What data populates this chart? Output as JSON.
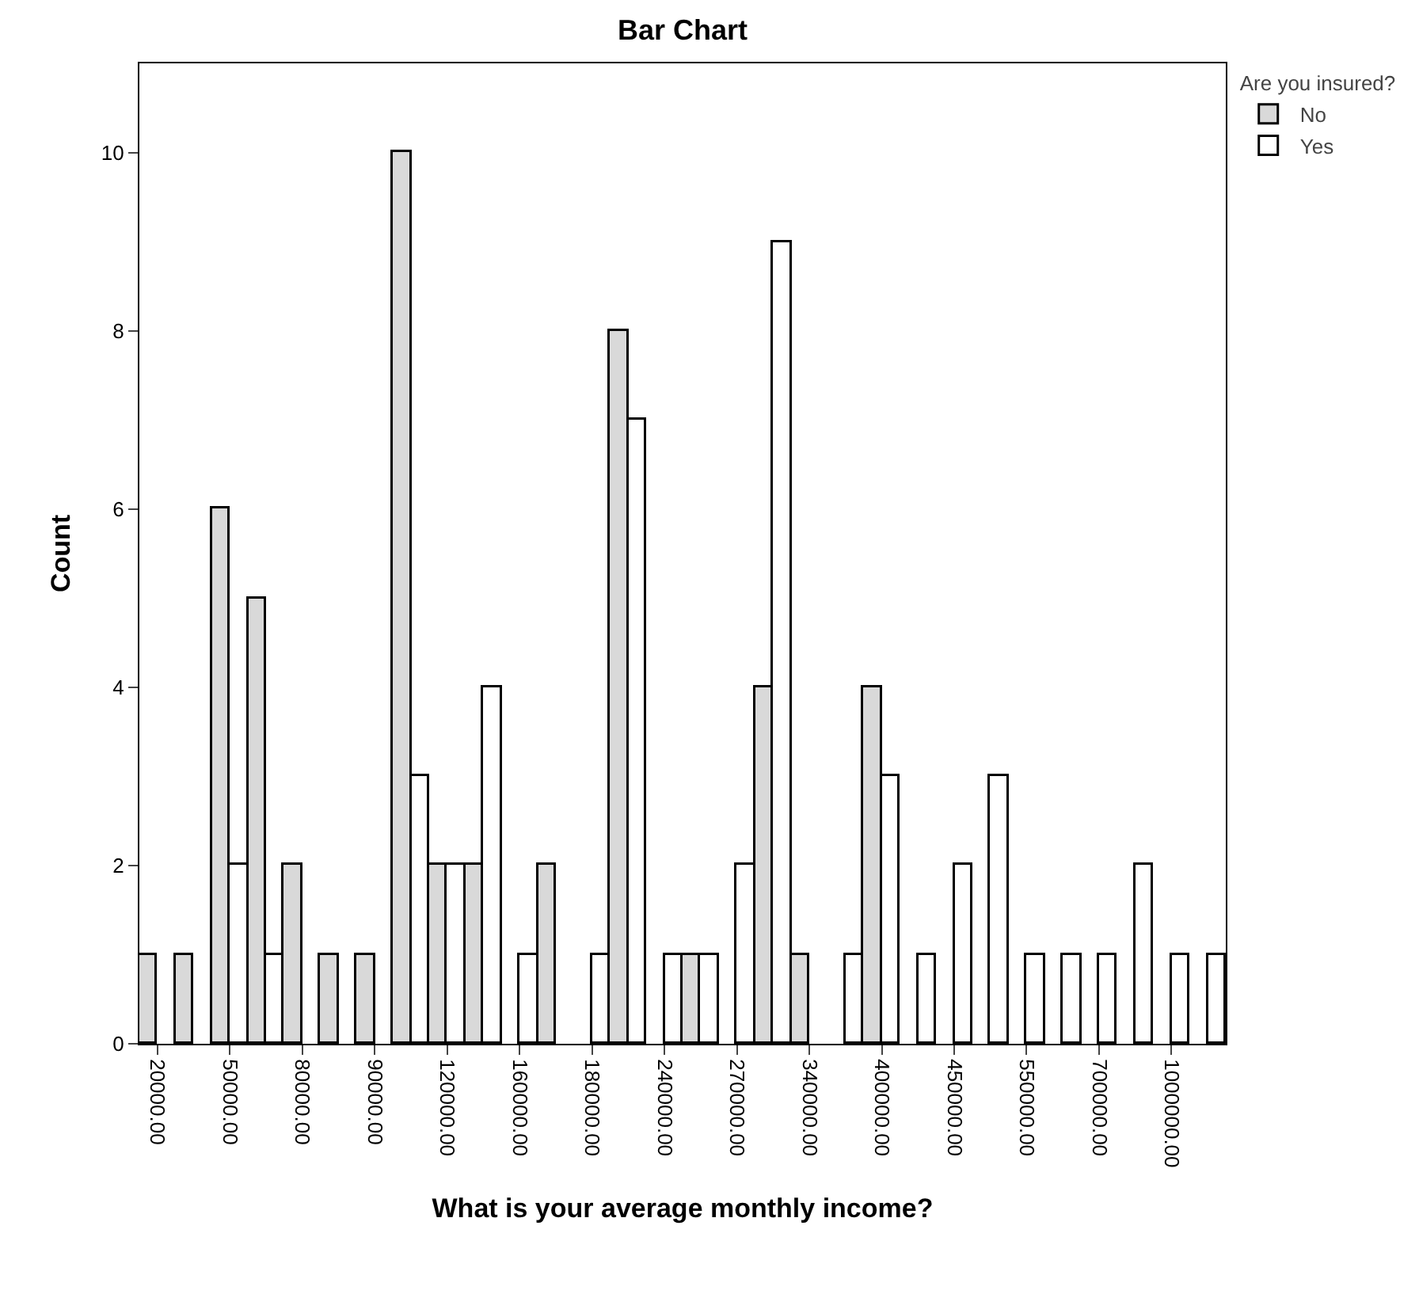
{
  "chart_data": {
    "type": "bar",
    "title": "Bar Chart",
    "xlabel": "What is your average monthly income?",
    "ylabel": "Count",
    "legend_title": "Are you insured?",
    "categories": [
      "20000.00",
      null,
      "50000.00",
      null,
      "80000.00",
      null,
      "90000.00",
      null,
      "120000.00",
      null,
      "160000.00",
      null,
      "180000.00",
      null,
      "240000.00",
      null,
      "270000.00",
      null,
      "340000.00",
      null,
      "400000.00",
      null,
      "450000.00",
      null,
      "550000.00",
      null,
      "700000.00",
      null,
      "1000000.00",
      null
    ],
    "series": [
      {
        "name": "No",
        "color": "#d9d9d9",
        "values": [
          1,
          1,
          6,
          5,
          2,
          1,
          1,
          10,
          2,
          2,
          0,
          2,
          0,
          8,
          0,
          1,
          0,
          4,
          1,
          0,
          4,
          0,
          0,
          0,
          0,
          0,
          0,
          0,
          0,
          0
        ]
      },
      {
        "name": "Yes",
        "color": "#ffffff",
        "values": [
          0,
          0,
          2,
          1,
          0,
          0,
          0,
          3,
          2,
          4,
          1,
          0,
          1,
          7,
          1,
          1,
          2,
          9,
          0,
          1,
          3,
          1,
          2,
          3,
          1,
          1,
          1,
          2,
          1,
          1
        ]
      }
    ],
    "ylim": [
      0,
      11
    ],
    "yticks": [
      0,
      2,
      4,
      6,
      8,
      10
    ],
    "grid": false,
    "legend": "top right"
  }
}
